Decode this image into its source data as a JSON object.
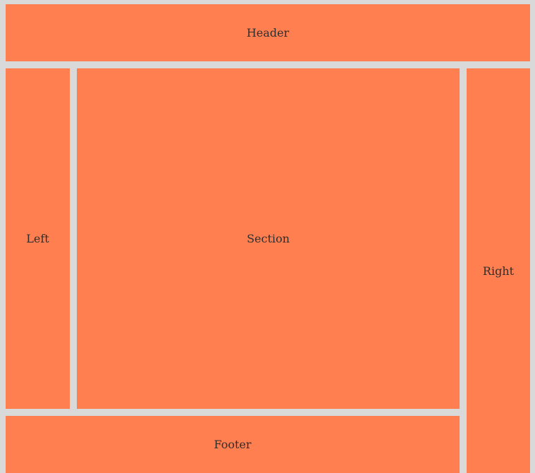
{
  "regions": {
    "header": {
      "label": "Header"
    },
    "left": {
      "label": "Left"
    },
    "section": {
      "label": "Section"
    },
    "right": {
      "label": "Right"
    },
    "footer": {
      "label": "Footer"
    }
  },
  "colors": {
    "background": "#d9d9d9",
    "region_fill": "#ff7f50",
    "text": "#2e2e2e"
  }
}
